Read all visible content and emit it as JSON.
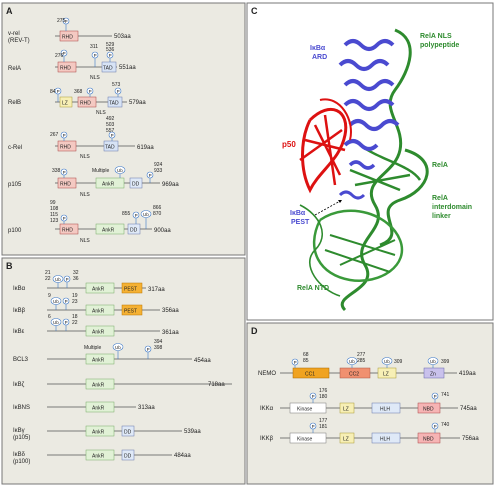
{
  "panels": {
    "A": "A",
    "B": "B",
    "C": "C",
    "D": "D"
  },
  "common": {
    "p": "P",
    "ub": "Ub",
    "nls": "NLS",
    "multiple": "Multiple"
  },
  "domains": {
    "rhd": "RHD",
    "tad": "TAD",
    "lz": "LZ",
    "ankr": "AnkR",
    "dd": "DD",
    "pest": "PEST",
    "cc1": "CC1",
    "cc2": "CC2",
    "zn": "Zn",
    "kinase": "Kinase",
    "hlh": "HLH",
    "nbd": "NBD"
  },
  "colors": {
    "rhd": "#f4c9c2",
    "tad": "#d7e3f5",
    "lz": "#f7efb5",
    "ankr": "#e1f1d6",
    "dd": "#dfe9f7",
    "pest": "#f5b133",
    "cc1": "#f0a321",
    "cc2": "#f09070",
    "zn": "#c9c1ec",
    "nbd": "#f6b4b4",
    "phos": "#3c78c8",
    "panel_bg": "#ebeae2"
  },
  "panelA": {
    "vrel": {
      "name1": "v-rel",
      "name2": "(REV-T)",
      "length": "503aa",
      "site": "275"
    },
    "rela": {
      "name": "RelA",
      "length": "551aa",
      "site1": "276",
      "site2": "311",
      "site3": "529",
      "site4": "536"
    },
    "relb": {
      "name": "RelB",
      "length": "579aa",
      "site1": "84",
      "site2": "368",
      "site3": "573"
    },
    "crel": {
      "name": "c-Rel",
      "length": "619aa",
      "site1": "267",
      "site2": "492",
      "site3": "503",
      "site4": "557"
    },
    "p105": {
      "name": "p105",
      "length": "969aa",
      "site1": "338",
      "site2": "924",
      "site3": "933"
    },
    "p100": {
      "name": "p100",
      "length": "900aa",
      "sites_left": [
        "99",
        "108",
        "115",
        "123"
      ],
      "site2": "855",
      "site3": "866",
      "site4": "870"
    }
  },
  "panelB": {
    "ikba": {
      "name": "IκBα",
      "length": "317aa",
      "site1": "21",
      "site2": "22",
      "site3": "32",
      "site4": "36"
    },
    "ikbb": {
      "name": "IκBβ",
      "length": "356aa",
      "site1": "9",
      "site2": "19",
      "site3": "23"
    },
    "ikbe": {
      "name": "IκBε",
      "length": "361aa",
      "site1": "6",
      "site2": "18",
      "site3": "22"
    },
    "bcl3": {
      "name": "BCL3",
      "length": "454aa",
      "site1": "394",
      "site2": "398"
    },
    "ikbz": {
      "name": "IκBζ",
      "length": "718aa"
    },
    "ikbns": {
      "name": "IκBNS",
      "length": "313aa"
    },
    "ikbg": {
      "name1": "IκBγ",
      "name2": "(p105)",
      "length": "539aa"
    },
    "ikbd": {
      "name1": "IκBδ",
      "name2": "(p100)",
      "length": "484aa"
    }
  },
  "panelC": {
    "label_ikba": "IκBα",
    "label_ard": "ARD",
    "label_nls1": "RelA NLS",
    "label_nls2": "polypeptide",
    "label_p50": "p50",
    "label_rela": "RelA",
    "label_link1": "RelA",
    "label_link2": "interdomain",
    "label_link3": "linker",
    "label_pest1": "IκBα",
    "label_pest2": "PEST",
    "label_ntd": "RelA NTD"
  },
  "panelD": {
    "nemo": {
      "name": "NEMO",
      "length": "419aa",
      "site1": "68",
      "site2": "85",
      "site3": "277",
      "site4": "285",
      "site5": "309",
      "site6": "399"
    },
    "ikka": {
      "name": "IKKα",
      "length": "745aa",
      "site1": "176",
      "site2": "180",
      "site3": "741"
    },
    "ikkb": {
      "name": "IKKβ",
      "length": "756aa",
      "site1": "177",
      "site2": "181",
      "site3": "740"
    }
  }
}
